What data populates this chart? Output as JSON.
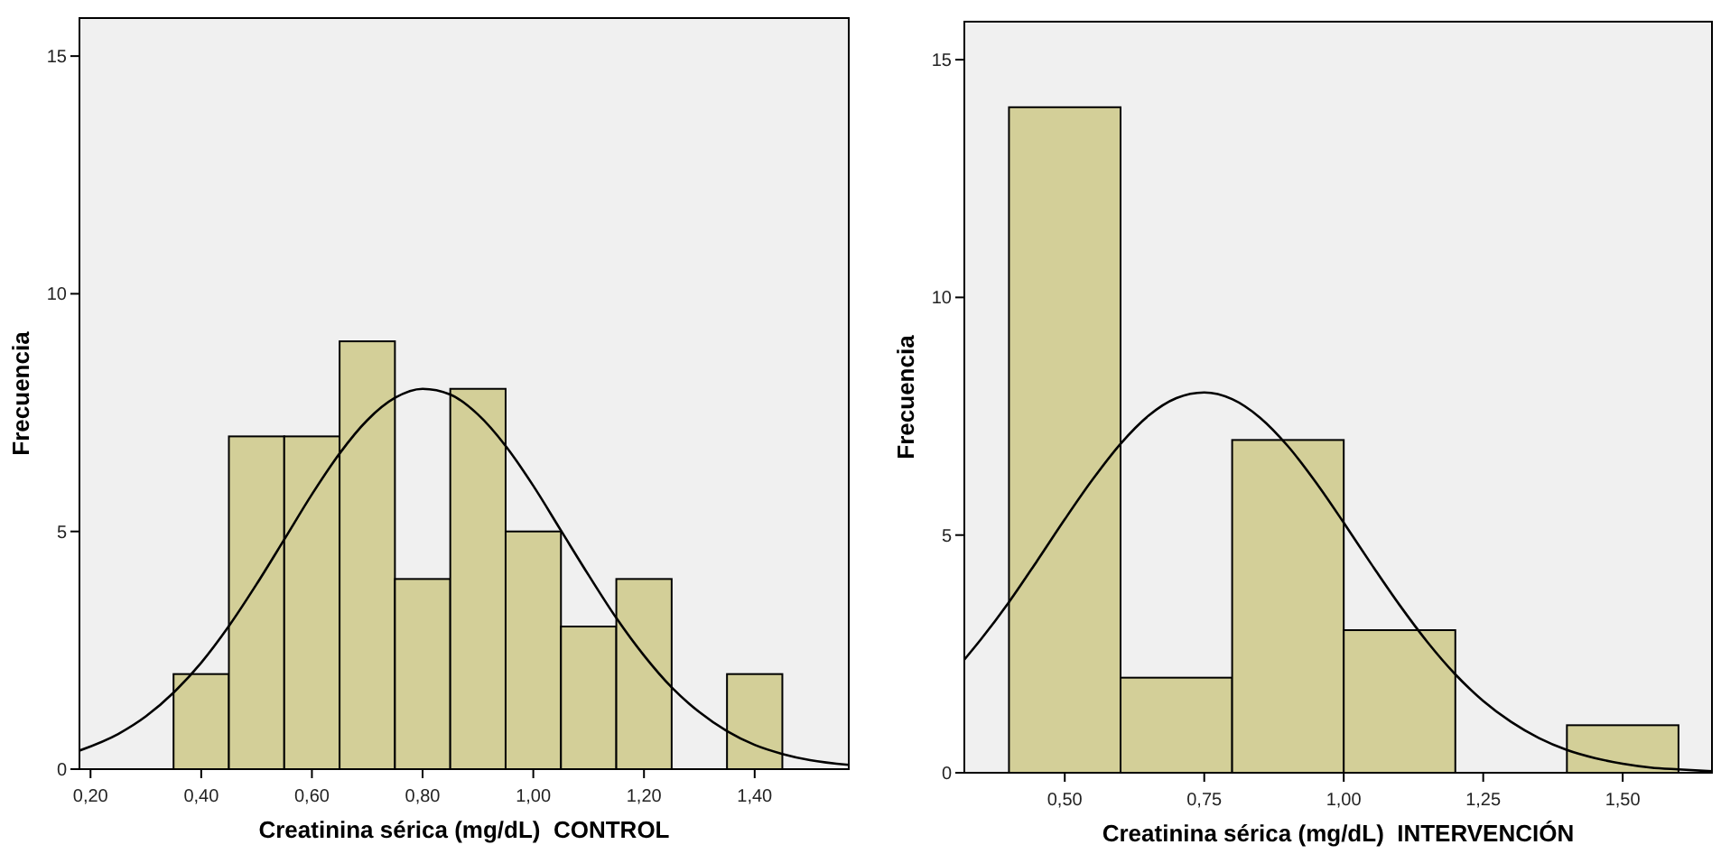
{
  "chart_data": [
    {
      "type": "histogram",
      "xlabel": "Creatinina sérica (mg/dL)  CONTROL",
      "ylabel": "Frecuencia",
      "bins": [
        0.35,
        0.45,
        0.55,
        0.65,
        0.75,
        0.85,
        0.95,
        1.05,
        1.15,
        1.25,
        1.35,
        1.45
      ],
      "values": [
        2,
        7,
        7,
        9,
        4,
        8,
        5,
        3,
        4,
        0,
        2
      ],
      "color": "#d3cf98",
      "xlim": [
        0.18,
        1.57
      ],
      "ylim": [
        0,
        15.8
      ],
      "xticks": [
        {
          "value": 0.2,
          "label": "0,20"
        },
        {
          "value": 0.4,
          "label": "0,40"
        },
        {
          "value": 0.6,
          "label": "0,60"
        },
        {
          "value": 0.8,
          "label": "0,80"
        },
        {
          "value": 1.0,
          "label": "1,00"
        },
        {
          "value": 1.2,
          "label": "1,20"
        },
        {
          "value": 1.4,
          "label": "1,40"
        }
      ],
      "yticks": [
        0,
        5,
        10,
        15
      ],
      "grid": false,
      "series": [
        {
          "type": "line",
          "color": "#000000",
          "x": [
            0.18,
            0.25,
            0.3,
            0.35,
            0.4,
            0.45,
            0.5,
            0.55,
            0.6,
            0.65,
            0.7,
            0.75,
            0.8,
            0.85,
            0.9,
            0.95,
            1.0,
            1.05,
            1.1,
            1.15,
            1.2,
            1.25,
            1.3,
            1.35,
            1.4,
            1.45,
            1.5,
            1.57
          ],
          "values": [
            0.39,
            0.74,
            1.11,
            1.61,
            2.24,
            3.01,
            3.89,
            4.83,
            5.78,
            6.64,
            7.34,
            7.81,
            8.0,
            7.88,
            7.46,
            6.8,
            5.96,
            5.02,
            4.08,
            3.18,
            2.39,
            1.72,
            1.2,
            0.8,
            0.51,
            0.32,
            0.19,
            0.09
          ]
        }
      ]
    },
    {
      "type": "histogram",
      "xlabel": "Creatinina sérica (mg/dL)  INTERVENCIÓN",
      "ylabel": "Frecuencia",
      "bins": [
        0.4,
        0.6,
        0.8,
        1.0,
        1.2,
        1.4,
        1.6
      ],
      "values": [
        14,
        2,
        7,
        3,
        0,
        1
      ],
      "color": "#d3cf98",
      "xlim": [
        0.32,
        1.66
      ],
      "ylim": [
        0,
        15.8
      ],
      "xticks": [
        {
          "value": 0.5,
          "label": "0,50"
        },
        {
          "value": 0.75,
          "label": "0,75"
        },
        {
          "value": 1.0,
          "label": "1,00"
        },
        {
          "value": 1.25,
          "label": "1,25"
        },
        {
          "value": 1.5,
          "label": "1,50"
        }
      ],
      "yticks": [
        0,
        5,
        10,
        15
      ],
      "grid": false,
      "series": [
        {
          "type": "line",
          "color": "#000000",
          "x": [
            0.32,
            0.35,
            0.4,
            0.45,
            0.5,
            0.55,
            0.6,
            0.65,
            0.7,
            0.75,
            0.8,
            0.85,
            0.9,
            0.95,
            1.0,
            1.05,
            1.1,
            1.15,
            1.2,
            1.25,
            1.3,
            1.35,
            1.4,
            1.45,
            1.5,
            1.55,
            1.6,
            1.66
          ],
          "values": [
            2.38,
            2.81,
            3.59,
            4.45,
            5.33,
            6.17,
            6.92,
            7.51,
            7.88,
            8.0,
            7.86,
            7.47,
            6.87,
            6.11,
            5.26,
            4.38,
            3.53,
            2.75,
            2.07,
            1.51,
            1.07,
            0.73,
            0.48,
            0.31,
            0.19,
            0.11,
            0.07,
            0.03
          ]
        }
      ]
    }
  ]
}
